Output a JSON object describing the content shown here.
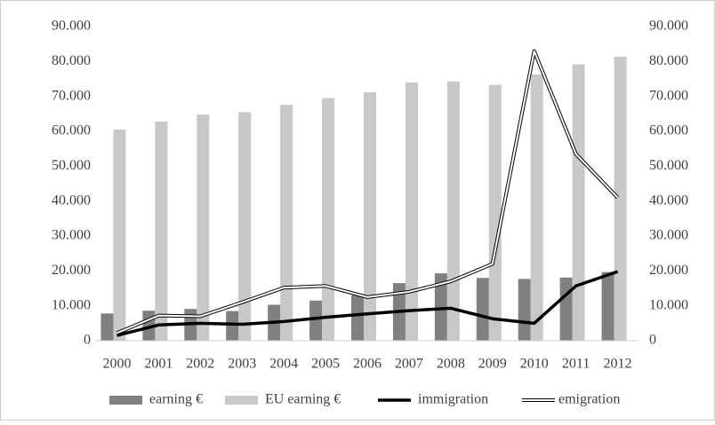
{
  "chart_data": {
    "type": "bar-line",
    "categories": [
      "2000",
      "2001",
      "2002",
      "2003",
      "2004",
      "2005",
      "2006",
      "2007",
      "2008",
      "2009",
      "2010",
      "2011",
      "2012"
    ],
    "series": [
      {
        "name": "earning €",
        "type": "bar",
        "color": "#808080",
        "values": [
          7800,
          8600,
          9100,
          8500,
          10300,
          11500,
          13000,
          16500,
          19300,
          18000,
          17700,
          18100,
          19700
        ]
      },
      {
        "name": "EU earning €",
        "type": "bar",
        "color": "#c8c8c8",
        "values": [
          60500,
          62800,
          64800,
          65500,
          67600,
          69500,
          71200,
          74000,
          74300,
          73300,
          76300,
          79200,
          81400
        ]
      },
      {
        "name": "immigration",
        "type": "line",
        "axis": "y2",
        "color": "#000000",
        "values": [
          1500,
          4500,
          5000,
          4700,
          5500,
          6700,
          7700,
          8600,
          9300,
          6300,
          5000,
          15700,
          19800
        ]
      },
      {
        "name": "emigration",
        "type": "double-line",
        "axis": "y2",
        "color": "#000000",
        "values": [
          2200,
          7200,
          7000,
          11000,
          15200,
          15700,
          12500,
          14000,
          17000,
          22000,
          83000,
          53500,
          41000
        ]
      }
    ],
    "ylim": [
      0,
      90000
    ],
    "yticks": [
      0,
      {
        "value": 10000,
        "label": "10.000"
      },
      {
        "value": 20000,
        "label": "20.000"
      },
      {
        "value": 30000,
        "label": "30.000"
      },
      {
        "value": 40000,
        "label": "40.000"
      },
      {
        "value": 50000,
        "label": "50.000"
      },
      {
        "value": 60000,
        "label": "60.000"
      },
      {
        "value": 70000,
        "label": "70.000"
      },
      {
        "value": 80000,
        "label": "80.000"
      },
      {
        "value": 90000,
        "label": "90.000"
      }
    ],
    "y2lim": [
      0,
      90000
    ],
    "y2ticks": [
      0,
      {
        "value": 10000,
        "label": "10.000"
      },
      {
        "value": 20000,
        "label": "20.000"
      },
      {
        "value": 30000,
        "label": "30.000"
      },
      {
        "value": 40000,
        "label": "40.000"
      },
      {
        "value": 50000,
        "label": "50.000"
      },
      {
        "value": 60000,
        "label": "60.000"
      },
      {
        "value": 70000,
        "label": "70.000"
      },
      {
        "value": 80000,
        "label": "80.000"
      },
      {
        "value": 90000,
        "label": "90.000"
      }
    ],
    "grid": false,
    "legend": "bottom"
  }
}
